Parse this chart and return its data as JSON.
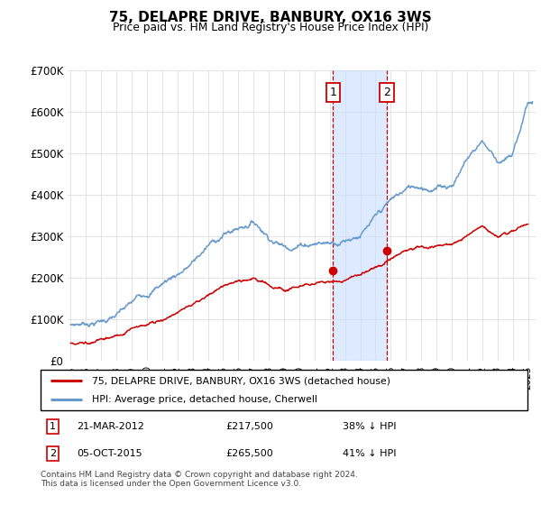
{
  "title": "75, DELAPRE DRIVE, BANBURY, OX16 3WS",
  "subtitle": "Price paid vs. HM Land Registry's House Price Index (HPI)",
  "ylabel_ticks": [
    "£0",
    "£100K",
    "£200K",
    "£300K",
    "£400K",
    "£500K",
    "£600K",
    "£700K"
  ],
  "ylim": [
    0,
    700000
  ],
  "xlim_start": 1994.8,
  "xlim_end": 2025.5,
  "transaction1": {
    "date": "21-MAR-2012",
    "year": 2012.22,
    "price": 217500,
    "label": "1"
  },
  "transaction2": {
    "date": "05-OCT-2015",
    "year": 2015.75,
    "price": 265500,
    "label": "2"
  },
  "legend_red": "75, DELAPRE DRIVE, BANBURY, OX16 3WS (detached house)",
  "legend_blue": "HPI: Average price, detached house, Cherwell",
  "footnote": "Contains HM Land Registry data © Crown copyright and database right 2024.\nThis data is licensed under the Open Government Licence v3.0.",
  "red_color": "#cc0000",
  "blue_color": "#6699cc",
  "shade_color": "#cce0ff",
  "grid_color": "#dddddd"
}
